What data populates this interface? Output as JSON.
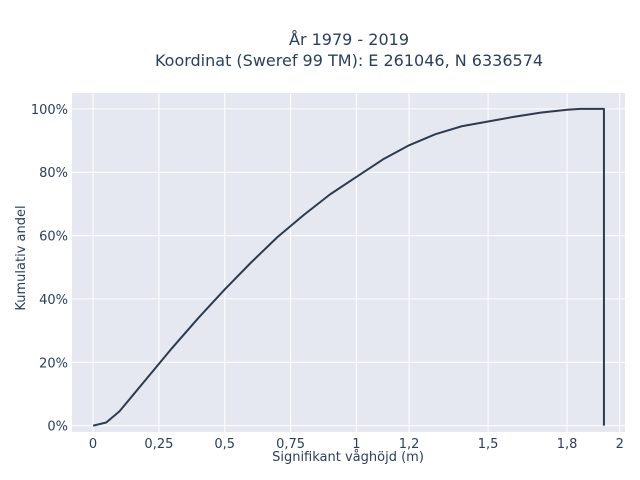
{
  "chart_data": {
    "type": "line",
    "title_line1": "År 1979 - 2019",
    "title_line2": "Koordinat (Sweref 99 TM): E 261046, N 6336574",
    "xlabel": "Signifikant våghöjd (m)",
    "ylabel": "Kumulativ andel",
    "xlim": [
      -0.08,
      2.02
    ],
    "ylim": [
      -0.02,
      1.05
    ],
    "grid": true,
    "x_ticks": [
      0,
      0.25,
      0.5,
      0.75,
      1,
      1.2,
      1.5,
      1.8,
      2
    ],
    "x_tick_labels": [
      "0",
      "0,25",
      "0,5",
      "0,75",
      "1",
      "1,2",
      "1,5",
      "1,8",
      "2"
    ],
    "y_ticks": [
      0,
      0.2,
      0.4,
      0.6,
      0.8,
      1
    ],
    "y_tick_labels": [
      "0%",
      "20%",
      "40%",
      "60%",
      "80%",
      "100%"
    ],
    "line_color": "#2d3b4f",
    "plot_bg": "#e5e8f0",
    "series": [
      {
        "x": [
          0,
          0.05,
          0.1,
          0.15,
          0.2,
          0.25,
          0.3,
          0.4,
          0.5,
          0.6,
          0.7,
          0.8,
          0.9,
          1.0,
          1.1,
          1.2,
          1.3,
          1.4,
          1.5,
          1.6,
          1.7,
          1.8,
          1.85,
          1.94,
          1.94
        ],
        "y": [
          0,
          0.01,
          0.045,
          0.095,
          0.145,
          0.195,
          0.245,
          0.34,
          0.43,
          0.515,
          0.595,
          0.665,
          0.73,
          0.785,
          0.84,
          0.885,
          0.92,
          0.945,
          0.96,
          0.975,
          0.988,
          0.997,
          1.0,
          1.0,
          0
        ]
      }
    ]
  }
}
